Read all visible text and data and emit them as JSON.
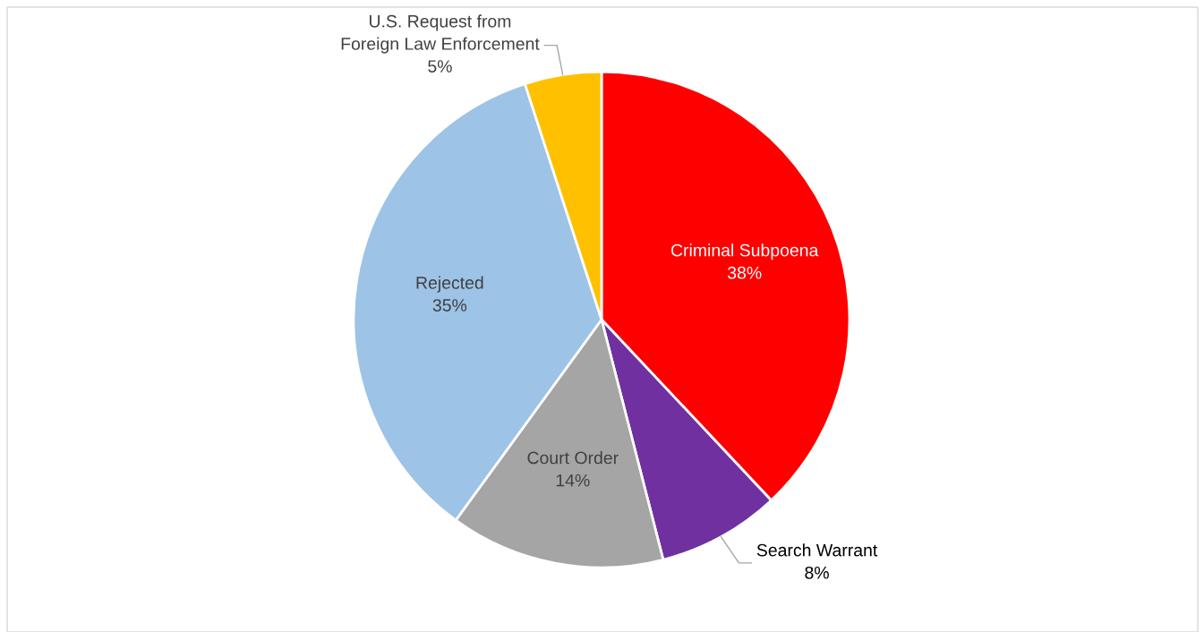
{
  "chart_data": {
    "type": "pie",
    "categories": [
      "Criminal Subpoena",
      "Search Warrant",
      "Court Order",
      "Rejected",
      "U.S. Request from\nForeign Law Enforcement"
    ],
    "values": [
      38,
      8,
      14,
      35,
      5
    ],
    "value_labels": [
      "38%",
      "8%",
      "14%",
      "35%",
      "5%"
    ],
    "colors": [
      "#ff0000",
      "#7030a0",
      "#a5a5a5",
      "#9dc3e6",
      "#ffc000"
    ],
    "legend": false
  }
}
